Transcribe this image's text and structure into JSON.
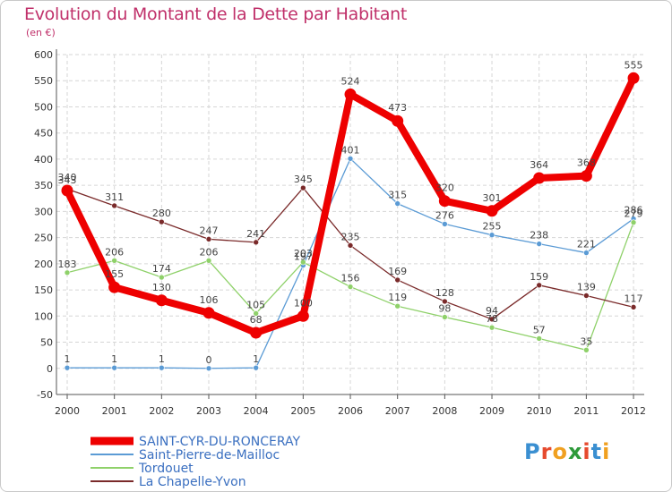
{
  "title": "Evolution du Montant de la Dette par Habitant",
  "subtitle": "(en €)",
  "logo": {
    "text": "Proxiti",
    "letters": [
      "P",
      "r",
      "o",
      "x",
      "i",
      "t",
      "i"
    ],
    "letter_colors": [
      "#3a8fd1",
      "#e64a2e",
      "#f0a020",
      "#2e9a3a",
      "#e64a2e",
      "#3a8fd1",
      "#f0a020"
    ]
  },
  "chart_data": {
    "type": "line",
    "title": "Evolution du Montant de la Dette par Habitant",
    "subtitle": "(en €)",
    "xlabel": "",
    "ylabel": "",
    "x": [
      "2000",
      "2001",
      "2002",
      "2003",
      "2004",
      "2005",
      "2006",
      "2007",
      "2008",
      "2009",
      "2010",
      "2011",
      "2012"
    ],
    "ylim": [
      -50,
      600
    ],
    "yticks": [
      "-50",
      "0",
      "50",
      "100",
      "150",
      "200",
      "250",
      "300",
      "350",
      "400",
      "450",
      "500",
      "550",
      "600"
    ],
    "ytick_values": [
      -50,
      0,
      50,
      100,
      150,
      200,
      250,
      300,
      350,
      400,
      450,
      500,
      550,
      600
    ],
    "grid": true,
    "legend_position": "bottom-left",
    "series": [
      {
        "name": "SAINT-CYR-DU-RONCERAY",
        "color": "#ee0000",
        "values": [
          340,
          155,
          130,
          106,
          68,
          100,
          524,
          473,
          320,
          301,
          364,
          368,
          555
        ],
        "labels": [
          "340",
          "155",
          "130",
          "106",
          "68",
          "100",
          "524",
          "473",
          "320",
          "301",
          "364",
          "368",
          "555"
        ],
        "emphasis": true
      },
      {
        "name": "Saint-Pierre-de-Mailloc",
        "color": "#5b9bd5",
        "values": [
          1,
          1,
          1,
          0,
          1,
          197,
          401,
          315,
          276,
          255,
          238,
          221,
          286
        ],
        "labels": [
          "1",
          "1",
          "1",
          "0",
          "1",
          "197",
          "401",
          "315",
          "276",
          "255",
          "238",
          "221",
          "286"
        ],
        "emphasis": false
      },
      {
        "name": "Tordouet",
        "color": "#8fd16a",
        "values": [
          183,
          206,
          174,
          206,
          105,
          203,
          156,
          119,
          98,
          78,
          57,
          35,
          279
        ],
        "labels": [
          "183",
          "206",
          "174",
          "206",
          "105",
          "203",
          "156",
          "119",
          "98",
          "78",
          "57",
          "35",
          "279"
        ],
        "emphasis": false
      },
      {
        "name": "La Chapelle-Yvon",
        "color": "#7a2a2a",
        "values": [
          343,
          311,
          280,
          247,
          241,
          345,
          235,
          169,
          128,
          94,
          159,
          139,
          117
        ],
        "labels": [
          "343",
          "311",
          "280",
          "247",
          "241",
          "345",
          "235",
          "169",
          "128",
          "94",
          "159",
          "139",
          "117"
        ],
        "emphasis": false
      }
    ]
  }
}
